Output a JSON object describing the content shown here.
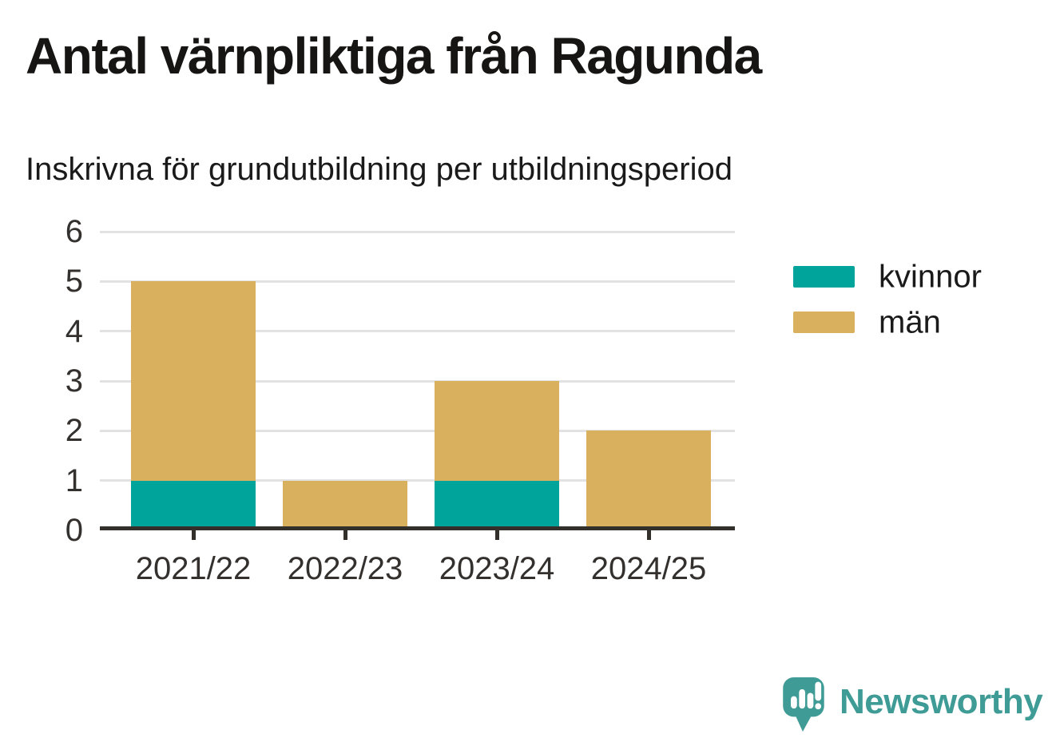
{
  "title": "Antal värnpliktiga från Ragunda",
  "subtitle": "Inskrivna för grundutbildning per utbildningsperiod",
  "brand": {
    "name": "Newsworthy"
  },
  "colors": {
    "kvinnor": "#00a49b",
    "man": "#d9b15e",
    "axis": "#33302c",
    "gridline": "#e2e2e2",
    "tick_text": "#33302e",
    "title_text": "#161513",
    "brand_teal": "#3f9b95",
    "background": "#ffffff"
  },
  "chart_data": {
    "type": "bar",
    "stacked": true,
    "title": "Antal värnpliktiga från Ragunda",
    "subtitle": "Inskrivna för grundutbildning per utbildningsperiod",
    "categories": [
      "2021/22",
      "2022/23",
      "2023/24",
      "2024/25"
    ],
    "series": [
      {
        "name": "kvinnor",
        "color": "#00a49b",
        "values": [
          1,
          0,
          1,
          0
        ]
      },
      {
        "name": "män",
        "color": "#d9b15e",
        "values": [
          4,
          1,
          2,
          2
        ]
      }
    ],
    "totals": [
      5,
      1,
      3,
      2
    ],
    "xlabel": "",
    "ylabel": "",
    "ylim": [
      0,
      6
    ],
    "yticks": [
      0,
      1,
      2,
      3,
      4,
      5,
      6
    ],
    "grid": true,
    "legend_position": "right"
  }
}
